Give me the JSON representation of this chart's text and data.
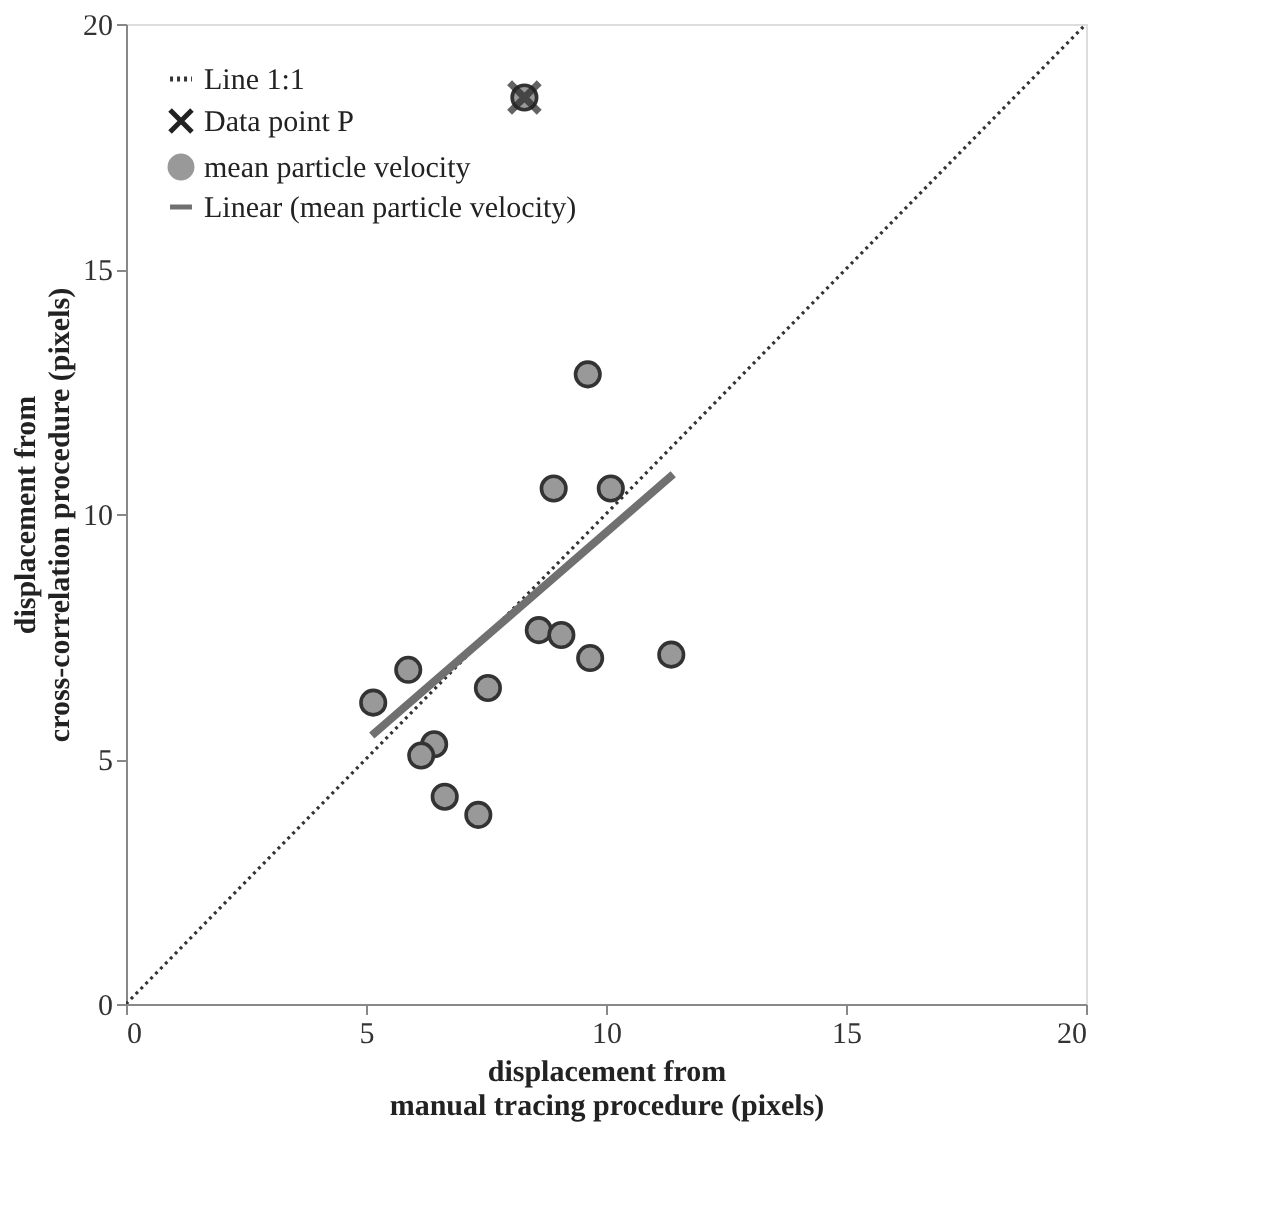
{
  "chart_data": {
    "type": "scatter",
    "xlabel": "displacement from\nmanual tracing procedure (pixels)",
    "ylabel": "displacement from\ncross-correlation procedure (pixels)",
    "xlim": [
      0,
      20
    ],
    "ylim": [
      0,
      20
    ],
    "xticks": [
      0,
      5,
      10,
      15,
      20
    ],
    "yticks": [
      0,
      5,
      10,
      15,
      20
    ],
    "grid": false,
    "legend": "top left",
    "series": [
      {
        "name": "Line 1:1",
        "type": "line",
        "line_style": "dotted",
        "color": "#333333",
        "x": [
          0,
          20
        ],
        "values": [
          0,
          20
        ]
      },
      {
        "name": "Data point P",
        "marker": "cross",
        "color": "#222222",
        "x": [
          8.3
        ],
        "values": [
          18.5
        ]
      },
      {
        "name": "mean particle velocity",
        "marker": "circle",
        "color": "#999999",
        "x": [
          8.3,
          9.62,
          8.91,
          10.1,
          8.6,
          9.07,
          9.67,
          11.36,
          5.88,
          5.15,
          7.54,
          6.42,
          6.15,
          6.64,
          7.34
        ],
        "values": [
          18.5,
          12.85,
          10.52,
          10.52,
          7.63,
          7.53,
          7.06,
          7.13,
          6.82,
          6.15,
          6.45,
          5.3,
          5.07,
          4.23,
          3.86
        ]
      },
      {
        "name": "Linear (mean particle velocity)",
        "type": "line",
        "line_style": "solid",
        "color": "#707070",
        "x": [
          5.12,
          11.4
        ],
        "values": [
          5.48,
          10.81
        ]
      }
    ]
  }
}
